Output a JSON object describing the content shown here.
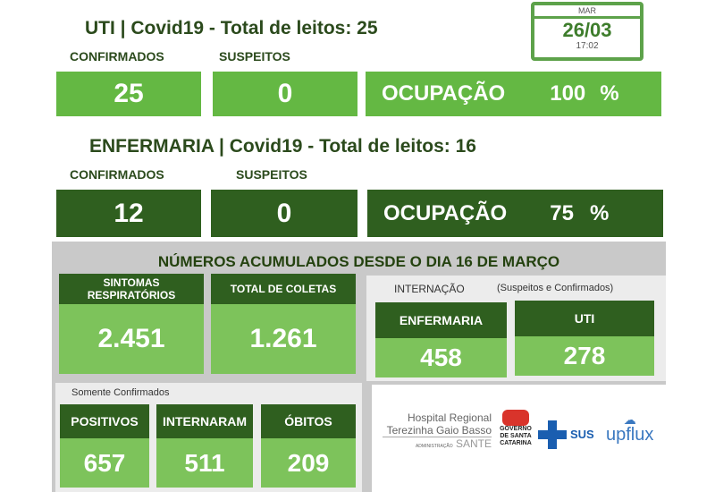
{
  "uti": {
    "title": "UTI | Covid19 - Total de leitos: 25",
    "confirmed_label": "CONFIRMADOS",
    "suspect_label": "SUSPEITOS",
    "confirmed": "25",
    "suspects": "0",
    "occupancy_label": "OCUPAÇÃO",
    "occupancy": "100",
    "pct": "%"
  },
  "date": {
    "month": "MAR",
    "day": "26/03",
    "time": "17:02"
  },
  "enf": {
    "title": "ENFERMARIA | Covid19 - Total de leitos: 16",
    "confirmed_label": "CONFIRMADOS",
    "suspect_label": "SUSPEITOS",
    "confirmed": "12",
    "suspects": "0",
    "occupancy_label": "OCUPAÇÃO",
    "occupancy": "75",
    "pct": "%"
  },
  "acc": {
    "title": "NÚMEROS ACUMULADOS DESDE O DIA 16 DE MARÇO",
    "sintomas_label": "SINTOMAS RESPIRATÓRIOS",
    "sintomas": "2.451",
    "coletas_label": "TOTAL DE COLETAS",
    "coletas": "1.261",
    "intern_label": "INTERNAÇÃO",
    "intern_note": "(Suspeitos e Confirmados)",
    "intern_enf_label": "ENFERMARIA",
    "intern_enf": "458",
    "intern_uti_label": "UTI",
    "intern_uti": "278",
    "only_confirmed": "Somente Confirmados",
    "positivos_label": "POSITIVOS",
    "positivos": "657",
    "internaram_label": "INTERNARAM",
    "internaram": "511",
    "obitos_label": "ÓBITOS",
    "obitos": "209"
  },
  "logos": {
    "hospital1": "Hospital Regional",
    "hospital2": "Terezinha Gaio Basso",
    "adm": "ADMINISTRAÇÃO",
    "sante": "SANTE",
    "gov": "GOVERNO DE SANTA CATARINA",
    "sus": "SUS",
    "upflux": "upflux"
  }
}
